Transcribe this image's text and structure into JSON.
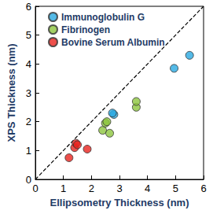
{
  "chart_data": {
    "type": "scatter",
    "x_label": "Ellipsometry Thickness (nm)",
    "y_label": "XPS Thickness (nm)",
    "xlim": [
      0,
      6
    ],
    "ylim": [
      0,
      6
    ],
    "xticks": [
      0,
      1,
      2,
      3,
      4,
      5,
      6
    ],
    "yticks": [
      0,
      1,
      2,
      3,
      4,
      5,
      6
    ],
    "grid": false,
    "legend": "upper left",
    "marker": "circle",
    "series": [
      {
        "name": "Immunoglobulin G",
        "color": "#29a9e1",
        "x": [
          2.8,
          2.75,
          4.95,
          5.5
        ],
        "values": [
          2.25,
          2.3,
          3.85,
          4.3
        ]
      },
      {
        "name": "Fibrinogen",
        "color": "#8dc63f",
        "x": [
          2.4,
          2.5,
          2.55,
          2.65,
          3.6,
          3.6
        ],
        "values": [
          1.7,
          1.95,
          2.0,
          1.6,
          2.5,
          2.7
        ]
      },
      {
        "name": "Bovine Serum Albumin",
        "color": "#e8231e",
        "x": [
          1.2,
          1.4,
          1.45,
          1.5,
          1.85
        ],
        "values": [
          0.75,
          1.1,
          1.25,
          1.2,
          1.05
        ]
      }
    ],
    "diagonal": {
      "x": [
        0,
        6
      ],
      "values": [
        0,
        6
      ],
      "line_style": "dashed",
      "color": "#000000"
    }
  }
}
